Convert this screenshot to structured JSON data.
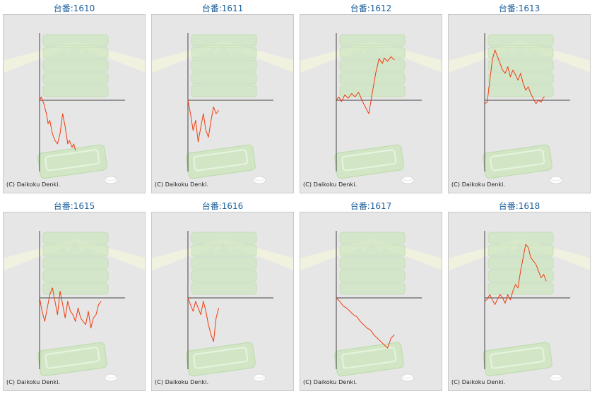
{
  "colors": {
    "title": "#1b5f9a",
    "line": "#f03c10",
    "axis": "#444444",
    "panel_bg": "#e6e6e6"
  },
  "icons": [
    "sunburst-decoration",
    "stacked-trays-decoration",
    "tray-decoration",
    "coin-icon"
  ],
  "machines": [
    {
      "title": "台番:1610",
      "copyright": "(C) Daikoku Denki."
    },
    {
      "title": "台番:1611",
      "copyright": "(C) Daikoku Denki."
    },
    {
      "title": "台番:1612",
      "copyright": "(C) Daikoku Denki."
    },
    {
      "title": "台番:1613",
      "copyright": "(C) Daikoku Denki."
    },
    {
      "title": "台番:1615",
      "copyright": "(C) Daikoku Denki."
    },
    {
      "title": "台番:1616",
      "copyright": "(C) Daikoku Denki."
    },
    {
      "title": "台番:1617",
      "copyright": "(C) Daikoku Denki."
    },
    {
      "title": "台番:1618",
      "copyright": "(C) Daikoku Denki."
    }
  ],
  "chart_data": [
    {
      "type": "line",
      "title": "台番:1610",
      "xlim": [
        0,
        100
      ],
      "ylim": [
        -100,
        100
      ],
      "series": [
        {
          "x": [
            0,
            2,
            5,
            8,
            10,
            12,
            15,
            18,
            21,
            24,
            27,
            30,
            33,
            35,
            38,
            40,
            42
          ],
          "y": [
            0,
            5,
            -5,
            -20,
            -35,
            -30,
            -50,
            -60,
            -65,
            -50,
            -20,
            -40,
            -65,
            -60,
            -70,
            -65,
            -75
          ]
        }
      ]
    },
    {
      "type": "line",
      "title": "台番:1611",
      "xlim": [
        0,
        100
      ],
      "ylim": [
        -100,
        100
      ],
      "series": [
        {
          "x": [
            0,
            3,
            6,
            9,
            12,
            15,
            18,
            21,
            24,
            27,
            30,
            33,
            36
          ],
          "y": [
            0,
            -20,
            -45,
            -30,
            -62,
            -40,
            -20,
            -45,
            -55,
            -30,
            -10,
            -20,
            -15
          ]
        }
      ]
    },
    {
      "type": "line",
      "title": "台番:1612",
      "xlim": [
        0,
        100
      ],
      "ylim": [
        -100,
        100
      ],
      "series": [
        {
          "x": [
            0,
            3,
            6,
            10,
            14,
            18,
            22,
            26,
            30,
            34,
            38,
            42,
            46,
            50,
            54,
            56,
            60,
            64,
            68
          ],
          "y": [
            0,
            5,
            -2,
            8,
            3,
            10,
            5,
            12,
            0,
            -10,
            -20,
            10,
            40,
            62,
            55,
            63,
            58,
            65,
            60
          ]
        }
      ]
    },
    {
      "type": "line",
      "title": "台番:1613",
      "xlim": [
        0,
        100
      ],
      "ylim": [
        -100,
        100
      ],
      "series": [
        {
          "x": [
            0,
            3,
            6,
            9,
            12,
            15,
            18,
            21,
            24,
            27,
            30,
            33,
            36,
            39,
            42,
            45,
            48,
            51,
            54,
            57,
            60,
            63,
            66,
            68,
            70
          ],
          "y": [
            -5,
            -3,
            30,
            60,
            75,
            65,
            55,
            45,
            40,
            50,
            35,
            45,
            38,
            30,
            40,
            25,
            15,
            20,
            10,
            2,
            -5,
            0,
            -3,
            3,
            5
          ]
        }
      ]
    },
    {
      "type": "line",
      "title": "台番:1615",
      "xlim": [
        0,
        100
      ],
      "ylim": [
        -100,
        100
      ],
      "series": [
        {
          "x": [
            0,
            3,
            6,
            9,
            12,
            15,
            18,
            21,
            24,
            27,
            30,
            33,
            36,
            39,
            42,
            45,
            48,
            51,
            54,
            57,
            60,
            63,
            66,
            69,
            72
          ],
          "y": [
            0,
            -20,
            -35,
            -15,
            5,
            15,
            -5,
            -25,
            10,
            -10,
            -30,
            -5,
            -20,
            -25,
            -35,
            -15,
            -30,
            -35,
            -40,
            -20,
            -45,
            -30,
            -25,
            -10,
            -5
          ]
        }
      ]
    },
    {
      "type": "line",
      "title": "台番:1616",
      "xlim": [
        0,
        100
      ],
      "ylim": [
        -100,
        100
      ],
      "series": [
        {
          "x": [
            0,
            3,
            6,
            9,
            12,
            15,
            18,
            21,
            24,
            27,
            30,
            33,
            36
          ],
          "y": [
            0,
            -10,
            -20,
            -5,
            -15,
            -25,
            -5,
            -20,
            -40,
            -55,
            -65,
            -30,
            -15
          ]
        }
      ]
    },
    {
      "type": "line",
      "title": "台番:1617",
      "xlim": [
        0,
        100
      ],
      "ylim": [
        -100,
        100
      ],
      "series": [
        {
          "x": [
            0,
            4,
            8,
            12,
            16,
            20,
            24,
            28,
            32,
            36,
            40,
            44,
            48,
            52,
            56,
            60,
            64,
            68
          ],
          "y": [
            0,
            -5,
            -12,
            -15,
            -20,
            -25,
            -28,
            -35,
            -40,
            -45,
            -48,
            -55,
            -60,
            -65,
            -70,
            -75,
            -60,
            -55
          ]
        }
      ]
    },
    {
      "type": "line",
      "title": "台番:1618",
      "xlim": [
        0,
        100
      ],
      "ylim": [
        -100,
        100
      ],
      "series": [
        {
          "x": [
            0,
            3,
            6,
            9,
            12,
            15,
            18,
            21,
            24,
            27,
            30,
            33,
            36,
            39,
            42,
            45,
            48,
            51,
            54,
            57,
            60,
            63,
            66,
            69,
            72
          ],
          "y": [
            -5,
            -2,
            5,
            -3,
            -10,
            -2,
            5,
            0,
            -8,
            5,
            -3,
            10,
            20,
            15,
            40,
            60,
            80,
            75,
            60,
            55,
            50,
            40,
            30,
            35,
            25
          ]
        }
      ]
    }
  ]
}
